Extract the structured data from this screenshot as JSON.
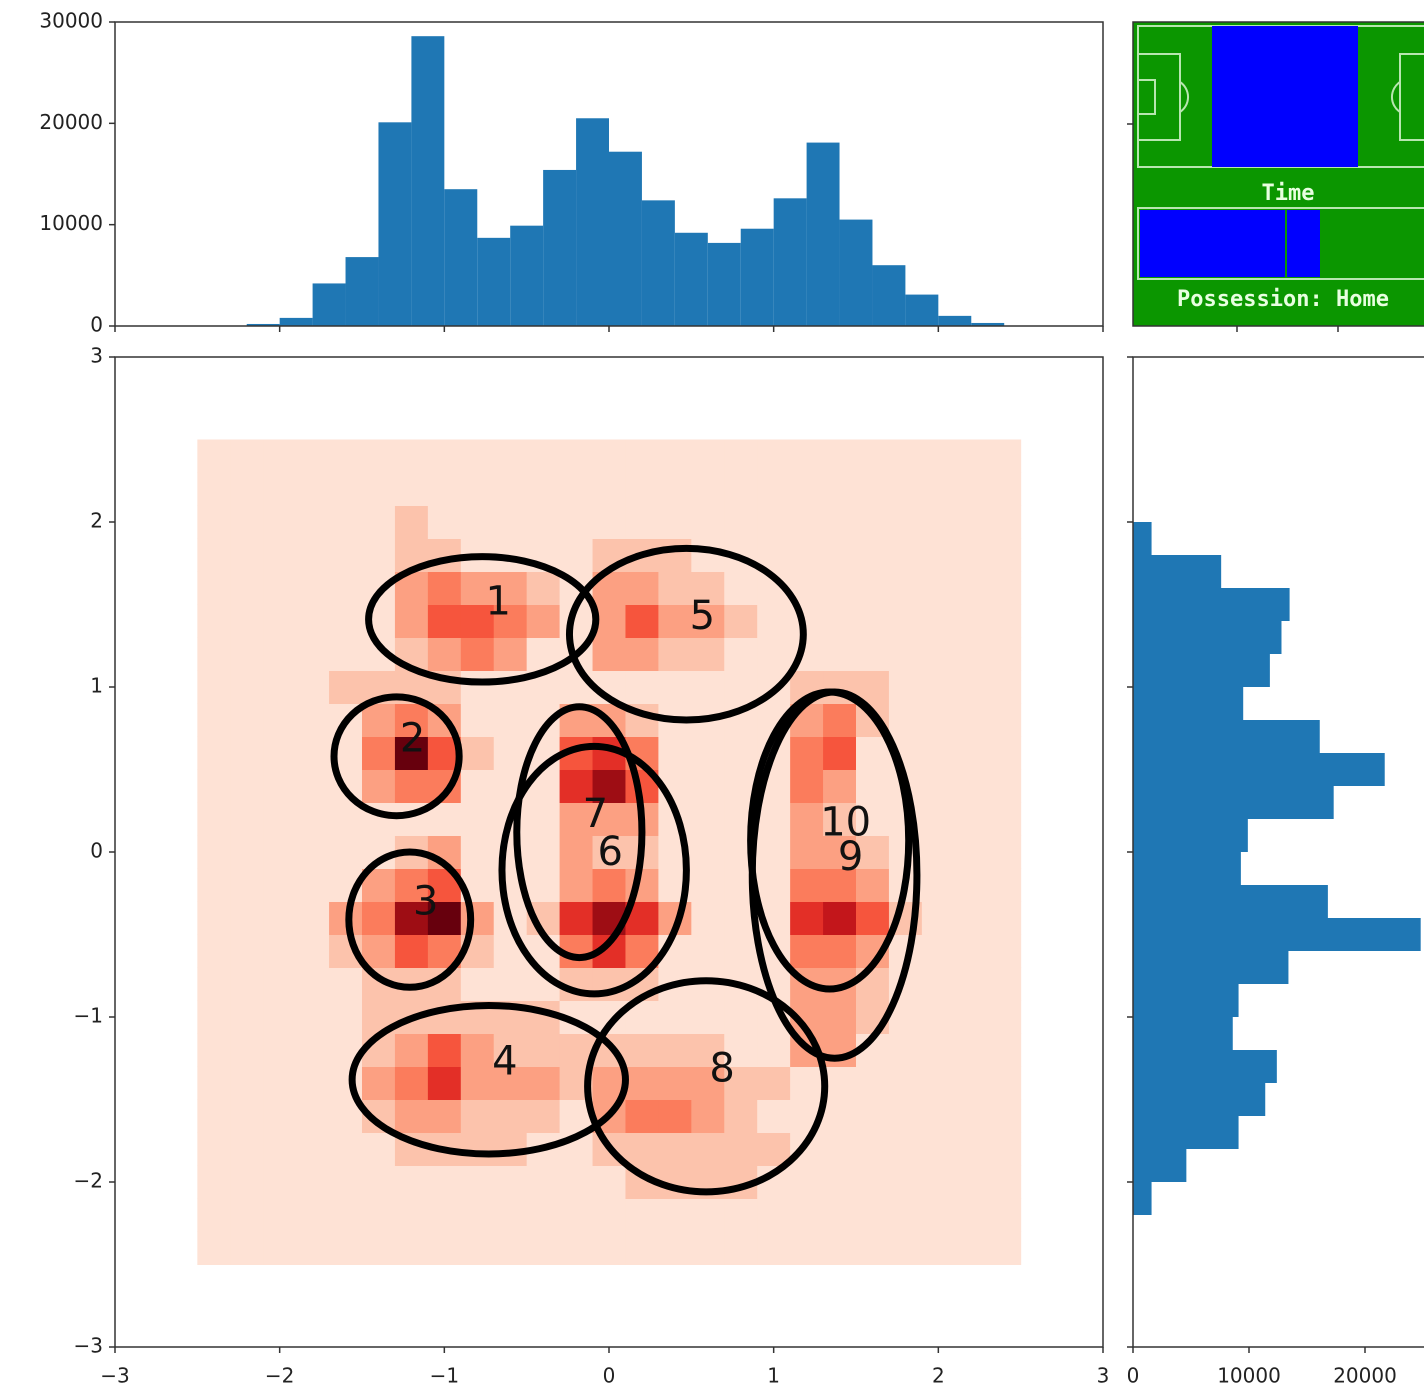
{
  "chart_data": [
    {
      "type": "histogram",
      "color": "#1f77b4",
      "bins": [
        -2.2,
        -2.0,
        -1.8,
        -1.6,
        -1.4,
        -1.2,
        -1.0,
        -0.8,
        -0.6,
        -0.4,
        -0.2,
        0.0,
        0.2,
        0.4,
        0.6,
        0.8,
        1.0,
        1.2,
        1.4,
        1.6,
        1.8,
        2.0,
        2.2,
        2.4
      ],
      "values": [
        200,
        800,
        4200,
        6800,
        20100,
        28600,
        13500,
        8700,
        9900,
        15400,
        20500,
        17200,
        12400,
        9200,
        8200,
        9600,
        12600,
        18100,
        10500,
        6000,
        3100,
        1000,
        300
      ],
      "xlim": [
        -3,
        3
      ],
      "ylim": [
        0,
        30000
      ],
      "yticks": [
        0,
        10000,
        20000,
        30000
      ]
    },
    {
      "type": "heatmap",
      "colormap": "Reds",
      "xbins": [
        -2.5,
        -2.3,
        -2.1,
        -1.9,
        -1.7,
        -1.5,
        -1.3,
        -1.1,
        -0.9,
        -0.7,
        -0.5,
        -0.3,
        -0.1,
        0.1,
        0.3,
        0.5,
        0.7,
        0.9,
        1.1,
        1.3,
        1.5,
        1.7,
        1.9,
        2.1,
        2.3,
        2.5
      ],
      "ybins": [
        -2.5,
        -2.3,
        -2.1,
        -1.9,
        -1.7,
        -1.5,
        -1.3,
        -1.1,
        -0.9,
        -0.7,
        -0.5,
        -0.3,
        -0.1,
        0.1,
        0.3,
        0.5,
        0.7,
        0.9,
        1.1,
        1.3,
        1.5,
        1.7,
        1.9,
        2.1,
        2.3,
        2.5
      ],
      "z": [
        [
          1,
          1,
          1,
          1,
          1,
          1,
          1,
          1,
          1,
          1,
          1,
          1,
          1,
          1,
          1,
          1,
          1,
          1,
          1,
          1,
          1,
          1,
          1,
          1,
          1
        ],
        [
          1,
          1,
          1,
          1,
          1,
          1,
          1,
          1,
          1,
          1,
          1,
          1,
          1,
          1,
          1,
          1,
          1,
          1,
          1,
          1,
          1,
          1,
          1,
          1,
          1
        ],
        [
          1,
          1,
          1,
          1,
          1,
          1,
          1,
          1,
          1,
          1,
          1,
          1,
          1,
          2,
          2,
          2,
          2,
          1,
          1,
          1,
          1,
          1,
          1,
          1,
          1
        ],
        [
          1,
          1,
          1,
          1,
          1,
          1,
          2,
          2,
          2,
          2,
          1,
          1,
          2,
          2,
          2,
          2,
          2,
          2,
          1,
          1,
          1,
          1,
          1,
          1,
          1
        ],
        [
          1,
          1,
          1,
          1,
          1,
          2,
          3,
          3,
          2,
          2,
          2,
          1,
          3,
          4,
          4,
          3,
          2,
          1,
          1,
          1,
          1,
          1,
          1,
          1,
          1
        ],
        [
          1,
          1,
          1,
          1,
          1,
          3,
          4,
          6,
          3,
          3,
          3,
          2,
          3,
          3,
          3,
          3,
          2,
          2,
          1,
          1,
          1,
          1,
          1,
          1,
          1
        ],
        [
          1,
          1,
          1,
          1,
          1,
          2,
          3,
          5,
          3,
          2,
          2,
          2,
          2,
          2,
          2,
          2,
          1,
          1,
          3,
          3,
          1,
          1,
          1,
          1,
          1
        ],
        [
          1,
          1,
          1,
          1,
          1,
          2,
          2,
          2,
          2,
          2,
          2,
          1,
          1,
          1,
          1,
          1,
          1,
          1,
          3,
          3,
          2,
          1,
          1,
          1,
          1
        ],
        [
          1,
          1,
          1,
          1,
          1,
          2,
          2,
          2,
          1,
          1,
          1,
          2,
          2,
          2,
          1,
          1,
          1,
          1,
          3,
          3,
          2,
          1,
          1,
          1,
          1
        ],
        [
          1,
          1,
          1,
          1,
          2,
          3,
          5,
          4,
          2,
          1,
          1,
          4,
          6,
          4,
          1,
          1,
          1,
          1,
          4,
          4,
          3,
          1,
          1,
          1,
          1
        ],
        [
          1,
          1,
          1,
          1,
          3,
          4,
          8,
          9,
          3,
          1,
          2,
          6,
          8,
          6,
          3,
          1,
          1,
          1,
          6,
          7,
          5,
          2,
          1,
          1,
          1
        ],
        [
          1,
          1,
          1,
          1,
          1,
          3,
          4,
          5,
          1,
          1,
          1,
          3,
          4,
          3,
          1,
          1,
          1,
          1,
          4,
          4,
          3,
          1,
          1,
          1,
          1
        ],
        [
          1,
          1,
          1,
          1,
          1,
          1,
          2,
          3,
          1,
          1,
          1,
          3,
          2,
          2,
          1,
          1,
          1,
          1,
          3,
          3,
          2,
          1,
          1,
          1,
          1
        ],
        [
          1,
          1,
          1,
          1,
          1,
          1,
          1,
          1,
          1,
          1,
          1,
          3,
          3,
          3,
          1,
          1,
          1,
          1,
          3,
          2,
          1,
          1,
          1,
          1,
          1
        ],
        [
          1,
          1,
          1,
          1,
          1,
          3,
          4,
          4,
          1,
          1,
          1,
          6,
          8,
          5,
          1,
          1,
          1,
          1,
          4,
          3,
          1,
          1,
          1,
          1,
          1
        ],
        [
          1,
          1,
          1,
          1,
          1,
          4,
          9,
          5,
          2,
          1,
          1,
          5,
          6,
          4,
          1,
          1,
          1,
          1,
          4,
          5,
          1,
          1,
          1,
          1,
          1
        ],
        [
          1,
          1,
          1,
          1,
          1,
          3,
          4,
          3,
          1,
          1,
          1,
          3,
          3,
          2,
          1,
          1,
          1,
          1,
          3,
          4,
          2,
          1,
          1,
          1,
          1
        ],
        [
          1,
          1,
          1,
          1,
          2,
          2,
          2,
          2,
          1,
          1,
          1,
          1,
          1,
          1,
          1,
          1,
          1,
          1,
          2,
          2,
          2,
          1,
          1,
          1,
          1
        ],
        [
          1,
          1,
          1,
          1,
          1,
          1,
          2,
          3,
          4,
          3,
          1,
          1,
          3,
          3,
          2,
          2,
          1,
          1,
          1,
          1,
          1,
          1,
          1,
          1,
          1
        ],
        [
          1,
          1,
          1,
          1,
          1,
          1,
          3,
          5,
          5,
          4,
          3,
          1,
          3,
          5,
          3,
          3,
          2,
          1,
          1,
          1,
          1,
          1,
          1,
          1,
          1
        ],
        [
          1,
          1,
          1,
          1,
          1,
          1,
          3,
          4,
          3,
          3,
          2,
          1,
          3,
          3,
          2,
          2,
          1,
          1,
          1,
          1,
          1,
          1,
          1,
          1,
          1
        ],
        [
          1,
          1,
          1,
          1,
          1,
          1,
          2,
          2,
          1,
          1,
          1,
          1,
          2,
          2,
          2,
          1,
          1,
          1,
          1,
          1,
          1,
          1,
          1,
          1,
          1
        ],
        [
          1,
          1,
          1,
          1,
          1,
          1,
          2,
          1,
          1,
          1,
          1,
          1,
          1,
          1,
          1,
          1,
          1,
          1,
          1,
          1,
          1,
          1,
          1,
          1,
          1
        ],
        [
          1,
          1,
          1,
          1,
          1,
          1,
          1,
          1,
          1,
          1,
          1,
          1,
          1,
          1,
          1,
          1,
          1,
          1,
          1,
          1,
          1,
          1,
          1,
          1,
          1
        ],
        [
          1,
          1,
          1,
          1,
          1,
          1,
          1,
          1,
          1,
          1,
          1,
          1,
          1,
          1,
          1,
          1,
          1,
          1,
          1,
          1,
          1,
          1,
          1,
          1,
          1
        ]
      ],
      "ellipses": [
        {
          "label": "1",
          "cx": -0.77,
          "cy": 1.41,
          "rx": 0.69,
          "ry": 0.38
        },
        {
          "label": "2",
          "cx": -1.29,
          "cy": 0.58,
          "rx": 0.38,
          "ry": 0.36
        },
        {
          "label": "3",
          "cx": -1.21,
          "cy": -0.41,
          "rx": 0.37,
          "ry": 0.41
        },
        {
          "label": "4",
          "cx": -0.73,
          "cy": -1.38,
          "rx": 0.83,
          "ry": 0.45
        },
        {
          "label": "5",
          "cx": 0.47,
          "cy": 1.32,
          "rx": 0.71,
          "ry": 0.52
        },
        {
          "label": "6",
          "cx": -0.09,
          "cy": -0.11,
          "rx": 0.56,
          "ry": 0.75
        },
        {
          "label": "7",
          "cx": -0.18,
          "cy": 0.12,
          "rx": 0.38,
          "ry": 0.76
        },
        {
          "label": "8",
          "cx": 0.59,
          "cy": -1.42,
          "rx": 0.72,
          "ry": 0.64
        },
        {
          "label": "9",
          "cx": 1.37,
          "cy": -0.14,
          "rx": 0.5,
          "ry": 1.11
        },
        {
          "label": "10",
          "cx": 1.34,
          "cy": 0.07,
          "rx": 0.48,
          "ry": 0.9
        }
      ],
      "xlim": [
        -3,
        3
      ],
      "ylim": [
        -3,
        3
      ],
      "xticks": [
        {
          "value": -3,
          "label": "−3"
        },
        {
          "value": -2,
          "label": "−2"
        },
        {
          "value": -1,
          "label": "−1"
        },
        0,
        1,
        2,
        3
      ],
      "yticks": [
        {
          "value": -3,
          "label": "−3"
        },
        {
          "value": -2,
          "label": "−2"
        },
        {
          "value": -1,
          "label": "−1"
        },
        0,
        1,
        2,
        3
      ]
    },
    {
      "type": "histogram",
      "orientation": "horizontal",
      "color": "#1f77b4",
      "bins": [
        -2.2,
        -2.0,
        -1.8,
        -1.6,
        -1.4,
        -1.2,
        -1.0,
        -0.8,
        -0.6,
        -0.4,
        -0.2,
        0.0,
        0.2,
        0.4,
        0.6,
        0.8,
        1.0,
        1.2,
        1.4,
        1.6,
        1.8,
        2.0
      ],
      "values": [
        1600,
        4600,
        9100,
        11400,
        12400,
        8600,
        9100,
        13400,
        24800,
        16800,
        9300,
        9900,
        17300,
        21700,
        16100,
        9500,
        11800,
        12800,
        13500,
        7600,
        1600
      ],
      "xlim": [
        0,
        25000
      ],
      "xticks": [
        0,
        10000,
        20000
      ],
      "ylim": [
        -3,
        3
      ]
    }
  ],
  "game_screen": {
    "time_label": "Time",
    "possession_label": "Possession: Home"
  }
}
